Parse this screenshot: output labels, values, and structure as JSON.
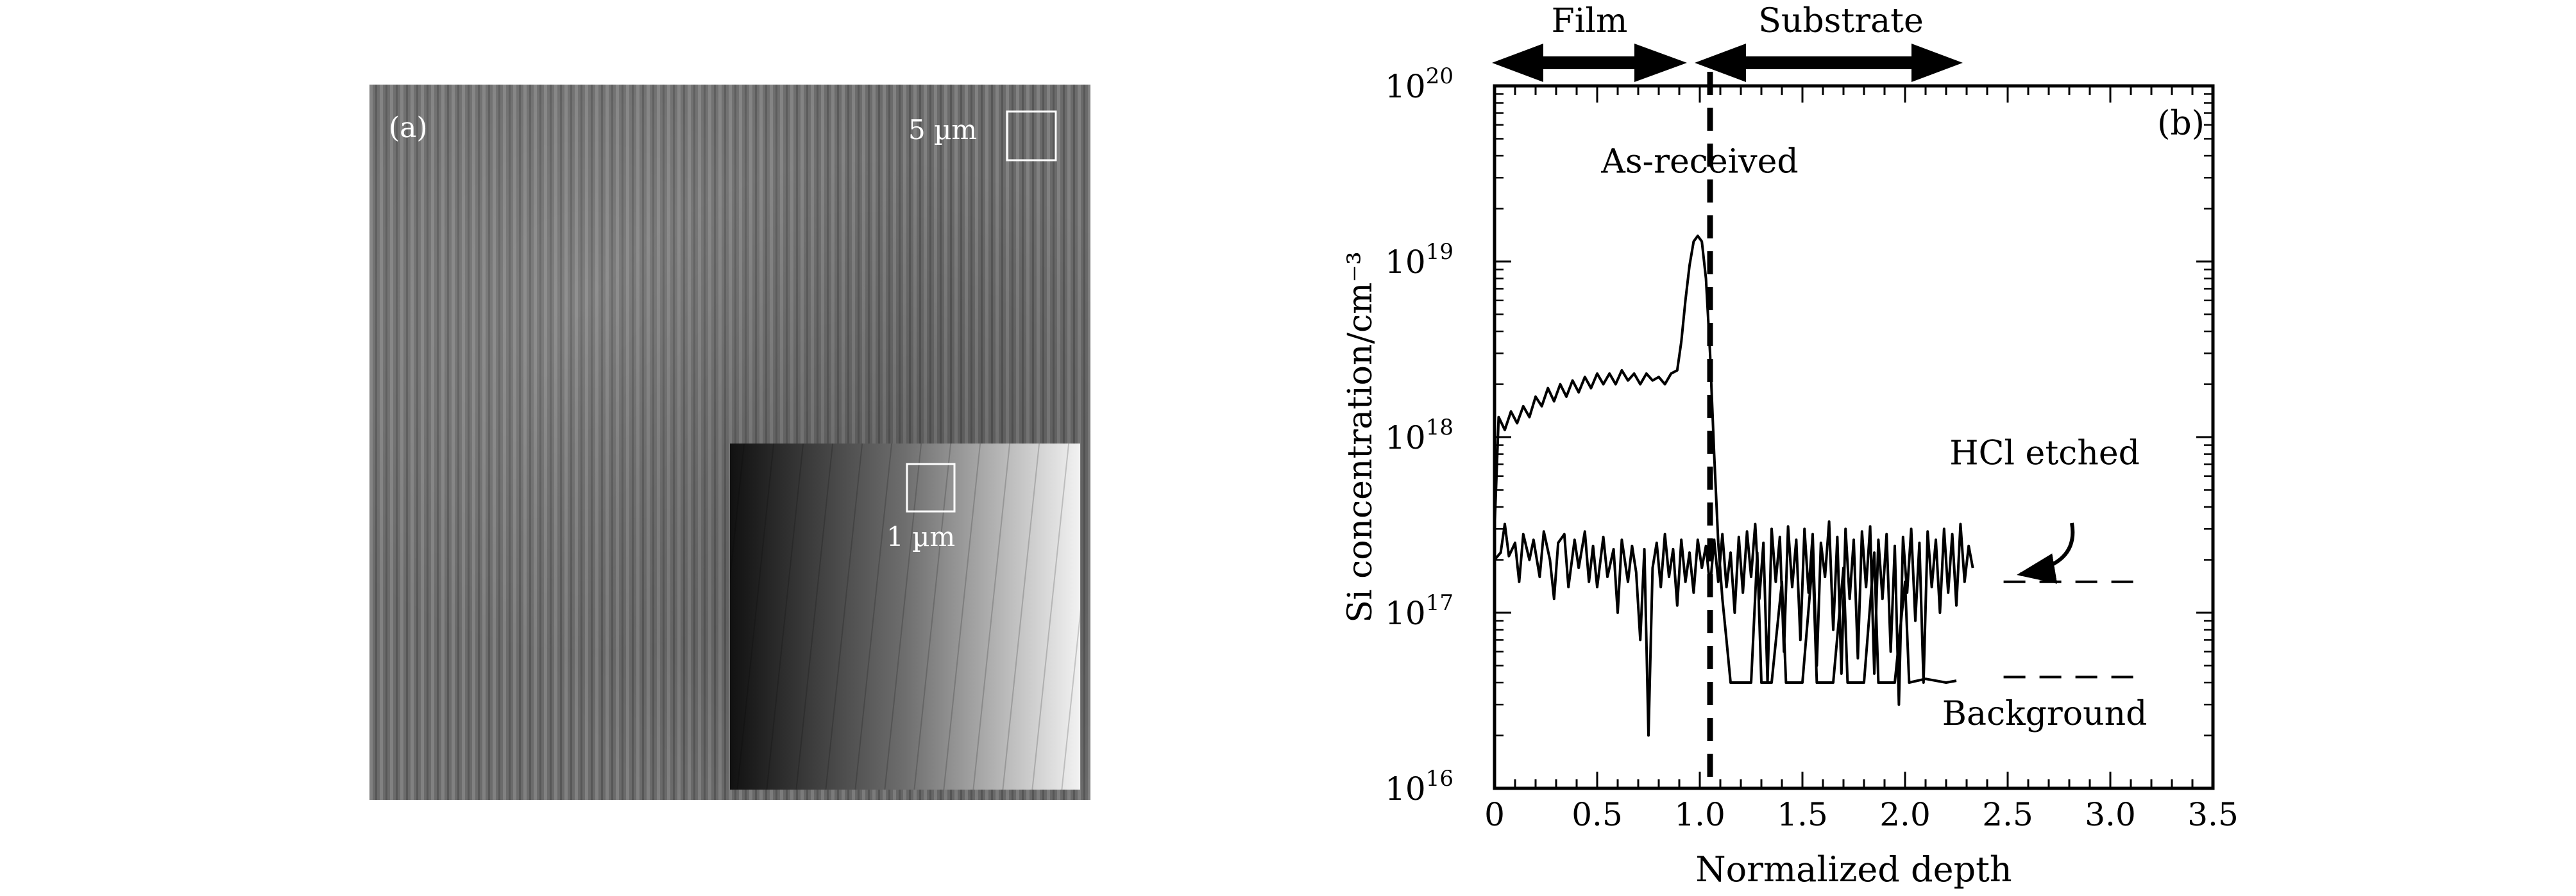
{
  "panel_a": {
    "label": "(a)",
    "scale_main": "5 µm",
    "scale_inset": "1 µm"
  },
  "chart_data": {
    "type": "line",
    "panel_label": "(b)",
    "xlabel": "Normalized depth",
    "ylabel": "Si concentration/cm⁻³",
    "xlim": [
      0,
      3.5
    ],
    "ylim": [
      1e+16,
      1e+20
    ],
    "y_scale": "log",
    "x_ticks": [
      "0",
      "0.5",
      "1.0",
      "1.5",
      "2.0",
      "2.5",
      "3.0",
      "3.5"
    ],
    "y_ticks": [
      {
        "base": "10",
        "exp": "16"
      },
      {
        "base": "10",
        "exp": "17"
      },
      {
        "base": "10",
        "exp": "18"
      },
      {
        "base": "10",
        "exp": "19"
      },
      {
        "base": "10",
        "exp": "20"
      }
    ],
    "region_labels": {
      "film": "Film",
      "substrate": "Substrate"
    },
    "interface_x": 1.05,
    "series": [
      {
        "name": "As-received",
        "points": [
          [
            0.0,
            3e+17
          ],
          [
            0.02,
            1.3e+18
          ],
          [
            0.05,
            1.1e+18
          ],
          [
            0.08,
            1.4e+18
          ],
          [
            0.11,
            1.2e+18
          ],
          [
            0.14,
            1.5e+18
          ],
          [
            0.17,
            1.3e+18
          ],
          [
            0.2,
            1.7e+18
          ],
          [
            0.23,
            1.5e+18
          ],
          [
            0.26,
            1.9e+18
          ],
          [
            0.29,
            1.6e+18
          ],
          [
            0.32,
            2e+18
          ],
          [
            0.35,
            1.7e+18
          ],
          [
            0.38,
            2.1e+18
          ],
          [
            0.41,
            1.8e+18
          ],
          [
            0.44,
            2.2e+18
          ],
          [
            0.47,
            1.9e+18
          ],
          [
            0.5,
            2.3e+18
          ],
          [
            0.53,
            2e+18
          ],
          [
            0.56,
            2.3e+18
          ],
          [
            0.59,
            2e+18
          ],
          [
            0.62,
            2.4e+18
          ],
          [
            0.65,
            2.1e+18
          ],
          [
            0.68,
            2.3e+18
          ],
          [
            0.71,
            2e+18
          ],
          [
            0.74,
            2.3e+18
          ],
          [
            0.77,
            2.1e+18
          ],
          [
            0.8,
            2.2e+18
          ],
          [
            0.83,
            2e+18
          ],
          [
            0.86,
            2.3e+18
          ],
          [
            0.89,
            2.4e+18
          ],
          [
            0.91,
            3.5e+18
          ],
          [
            0.93,
            6e+18
          ],
          [
            0.95,
            9.5e+18
          ],
          [
            0.97,
            1.3e+19
          ],
          [
            0.99,
            1.4e+19
          ],
          [
            1.01,
            1.3e+19
          ],
          [
            1.03,
            8e+18
          ],
          [
            1.05,
            3e+18
          ],
          [
            1.07,
            8e+17
          ],
          [
            1.09,
            2.5e+17
          ],
          [
            1.11,
            1.2e+17
          ],
          [
            1.13,
            7e+16
          ],
          [
            1.15,
            4e+16
          ],
          [
            1.2,
            4e+16
          ],
          [
            1.25,
            4e+16
          ],
          [
            1.28,
            2.2e+17
          ],
          [
            1.3,
            4e+16
          ],
          [
            1.35,
            4e+16
          ],
          [
            1.4,
            1.5e+17
          ],
          [
            1.42,
            4e+16
          ],
          [
            1.5,
            4e+16
          ],
          [
            1.55,
            2e+17
          ],
          [
            1.57,
            4e+16
          ],
          [
            1.65,
            4e+16
          ],
          [
            1.7,
            1.8e+17
          ],
          [
            1.72,
            4e+16
          ],
          [
            1.8,
            4e+16
          ],
          [
            1.85,
            2.2e+17
          ],
          [
            1.87,
            4e+16
          ],
          [
            1.95,
            4e+16
          ],
          [
            2.0,
            1.5e+17
          ],
          [
            2.02,
            4e+16
          ],
          [
            2.1,
            4.2e+16
          ],
          [
            2.2,
            4e+16
          ],
          [
            2.25,
            4.1e+16
          ]
        ]
      },
      {
        "name": "HCl etched",
        "points": [
          [
            0.0,
            2e+17
          ],
          [
            0.03,
            2.2e+17
          ],
          [
            0.05,
            3.2e+17
          ],
          [
            0.07,
            2.1e+17
          ],
          [
            0.1,
            2.5e+17
          ],
          [
            0.12,
            1.5e+17
          ],
          [
            0.14,
            2.8e+17
          ],
          [
            0.17,
            2e+17
          ],
          [
            0.19,
            2.6e+17
          ],
          [
            0.22,
            1.6e+17
          ],
          [
            0.24,
            2.9e+17
          ],
          [
            0.27,
            2e+17
          ],
          [
            0.29,
            1.2e+17
          ],
          [
            0.31,
            2.5e+17
          ],
          [
            0.34,
            2.8e+17
          ],
          [
            0.36,
            1.4e+17
          ],
          [
            0.39,
            2.6e+17
          ],
          [
            0.41,
            1.8e+17
          ],
          [
            0.44,
            2.9e+17
          ],
          [
            0.46,
            1.5e+17
          ],
          [
            0.48,
            2.4e+17
          ],
          [
            0.5,
            1.4e+17
          ],
          [
            0.53,
            2.7e+17
          ],
          [
            0.55,
            1.6e+17
          ],
          [
            0.58,
            2.3e+17
          ],
          [
            0.6,
            1e+17
          ],
          [
            0.62,
            2.6e+17
          ],
          [
            0.65,
            1.5e+17
          ],
          [
            0.67,
            2.4e+17
          ],
          [
            0.69,
            1.7e+17
          ],
          [
            0.71,
            7e+16
          ],
          [
            0.73,
            2.3e+17
          ],
          [
            0.75,
            2e+16
          ],
          [
            0.77,
            1.8e+17
          ],
          [
            0.79,
            2.5e+17
          ],
          [
            0.81,
            1.4e+17
          ],
          [
            0.83,
            2.8e+17
          ],
          [
            0.85,
            1.6e+17
          ],
          [
            0.87,
            2.3e+17
          ],
          [
            0.89,
            1.1e+17
          ],
          [
            0.91,
            2.6e+17
          ],
          [
            0.93,
            1.5e+17
          ],
          [
            0.95,
            2.2e+17
          ],
          [
            0.97,
            1.3e+17
          ],
          [
            0.99,
            2.6e+17
          ],
          [
            1.01,
            1.8e+17
          ],
          [
            1.03,
            2.4e+17
          ],
          [
            1.05,
            1.4e+17
          ],
          [
            1.07,
            2.6e+17
          ],
          [
            1.09,
            1.5e+17
          ],
          [
            1.11,
            2.8e+17
          ],
          [
            1.13,
            1.4e+17
          ],
          [
            1.15,
            2.2e+17
          ],
          [
            1.17,
            1e+17
          ],
          [
            1.19,
            2.7e+17
          ],
          [
            1.21,
            1.3e+17
          ],
          [
            1.23,
            2.9e+17
          ],
          [
            1.25,
            1.6e+17
          ],
          [
            1.27,
            3.2e+17
          ],
          [
            1.29,
            1.2e+17
          ],
          [
            1.31,
            2.5e+17
          ],
          [
            1.33,
            4e+16
          ],
          [
            1.35,
            3e+17
          ],
          [
            1.37,
            1.5e+17
          ],
          [
            1.39,
            2.7e+17
          ],
          [
            1.41,
            6e+16
          ],
          [
            1.43,
            3.1e+17
          ],
          [
            1.45,
            1.4e+17
          ],
          [
            1.47,
            2.6e+17
          ],
          [
            1.49,
            7e+16
          ],
          [
            1.51,
            3e+17
          ],
          [
            1.53,
            1.3e+17
          ],
          [
            1.55,
            2.8e+17
          ],
          [
            1.57,
            5e+16
          ],
          [
            1.59,
            2.5e+17
          ],
          [
            1.61,
            1.6e+17
          ],
          [
            1.63,
            3.3e+17
          ],
          [
            1.65,
            8e+16
          ],
          [
            1.67,
            2.7e+17
          ],
          [
            1.69,
            4.5e+16
          ],
          [
            1.71,
            3e+17
          ],
          [
            1.73,
            1.2e+17
          ],
          [
            1.75,
            2.6e+17
          ],
          [
            1.77,
            5.5e+16
          ],
          [
            1.79,
            2.9e+17
          ],
          [
            1.81,
            1.4e+17
          ],
          [
            1.83,
            3.1e+17
          ],
          [
            1.85,
            4.5e+16
          ],
          [
            1.87,
            2.6e+17
          ],
          [
            1.89,
            1.2e+17
          ],
          [
            1.91,
            2.8e+17
          ],
          [
            1.93,
            6e+16
          ],
          [
            1.95,
            2.4e+17
          ],
          [
            1.97,
            3e+16
          ],
          [
            1.99,
            2.7e+17
          ],
          [
            2.01,
            1.3e+17
          ],
          [
            2.03,
            3e+17
          ],
          [
            2.05,
            9e+16
          ],
          [
            2.07,
            2.5e+17
          ],
          [
            2.09,
            4e+16
          ],
          [
            2.11,
            2.9e+17
          ],
          [
            2.13,
            1.4e+17
          ],
          [
            2.15,
            2.6e+17
          ],
          [
            2.17,
            1e+17
          ],
          [
            2.19,
            3e+17
          ],
          [
            2.21,
            1.3e+17
          ],
          [
            2.23,
            2.8e+17
          ],
          [
            2.25,
            1.1e+17
          ],
          [
            2.27,
            3.2e+17
          ],
          [
            2.29,
            1.5e+17
          ],
          [
            2.31,
            2.4e+17
          ],
          [
            2.33,
            1.8e+17
          ]
        ]
      }
    ],
    "annotations": [
      {
        "text": "As-received",
        "x": 1.0,
        "y": 3.2e+19
      },
      {
        "text": "HCl etched",
        "x": 2.68,
        "y": 7e+17
      },
      {
        "text": "Background",
        "x": 2.68,
        "y": 2.3e+16
      }
    ],
    "reference_lines": [
      {
        "name": "HCl etched level",
        "x": [
          2.48,
          3.12
        ],
        "y": 1.5e+17
      },
      {
        "name": "Background level",
        "x": [
          2.48,
          3.12
        ],
        "y": 4.3e+16
      }
    ]
  }
}
